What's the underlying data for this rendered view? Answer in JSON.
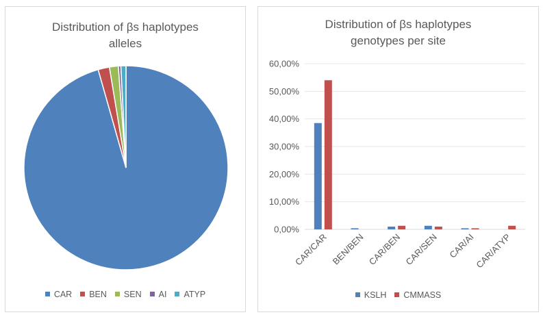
{
  "chart_data": [
    {
      "type": "pie",
      "title_line1": "Distribution of βs haplotypes",
      "title_line2": "alleles",
      "categories": [
        "CAR",
        "BEN",
        "SEN",
        "AI",
        "ATYP"
      ],
      "values": [
        95.6,
        1.8,
        1.4,
        0.4,
        0.8
      ],
      "colors": [
        "#4f81bd",
        "#c0504d",
        "#9bbb59",
        "#8064a2",
        "#4bacc6"
      ],
      "legend_position": "bottom",
      "start_angle_deg": 0,
      "direction": "clockwise"
    },
    {
      "type": "bar",
      "title_line1": "Distribution of βs haplotypes",
      "title_line2": "genotypes per site",
      "categories": [
        "CAR/CAR",
        "BEN/BEN",
        "CAR/BEN",
        "CAR/SEN",
        "CAR/AI",
        "CAR/ATYP"
      ],
      "series": [
        {
          "name": "KSLH",
          "values": [
            38.5,
            0.4,
            1.0,
            1.3,
            0.4,
            0.0
          ],
          "color": "#4f81bd"
        },
        {
          "name": "CMMASS",
          "values": [
            54.0,
            0.0,
            1.3,
            1.0,
            0.4,
            1.3
          ],
          "color": "#c0504d"
        }
      ],
      "ylim": [
        0,
        60
      ],
      "yticks": [
        0,
        10,
        20,
        30,
        40,
        50,
        60
      ],
      "ytick_labels": [
        "0,00%",
        "10,00%",
        "20,00%",
        "30,00%",
        "40,00%",
        "50,00%",
        "60,00%"
      ],
      "grid": true,
      "legend_position": "bottom",
      "xlabel": "",
      "ylabel": ""
    }
  ]
}
